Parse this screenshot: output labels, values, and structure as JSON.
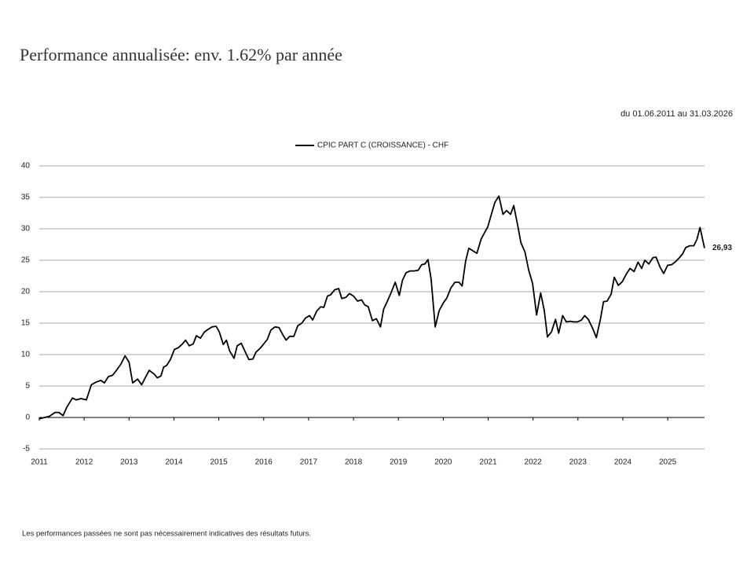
{
  "chart_data": {
    "type": "line",
    "title": "Performance annualisée: env. 1.62% par année",
    "subtitle": "du 01.06.2011 au 31.03.2026",
    "footnote": "Les performances passées ne sont pas nécessairement indicatives des résultats futurs.",
    "x": [
      2011.0,
      2011.12,
      2011.23,
      2011.35,
      2011.44,
      2011.53,
      2011.61,
      2011.74,
      2011.82,
      2011.93,
      2012.05,
      2012.16,
      2012.26,
      2012.37,
      2012.45,
      2012.54,
      2012.63,
      2012.72,
      2012.82,
      2012.91,
      2013.0,
      2013.08,
      2013.19,
      2013.28,
      2013.36,
      2013.45,
      2013.56,
      2013.63,
      2013.71,
      2013.77,
      2013.84,
      2013.92,
      2014.01,
      2014.1,
      2014.19,
      2014.26,
      2014.34,
      2014.43,
      2014.5,
      2014.59,
      2014.68,
      2014.76,
      2014.85,
      2014.94,
      2015.01,
      2015.1,
      2015.17,
      2015.24,
      2015.34,
      2015.41,
      2015.5,
      2015.59,
      2015.67,
      2015.76,
      2015.83,
      2015.92,
      2015.99,
      2016.08,
      2016.16,
      2016.25,
      2016.34,
      2016.43,
      2016.5,
      2016.58,
      2016.67,
      2016.76,
      2016.85,
      2016.93,
      2017.02,
      2017.09,
      2017.18,
      2017.27,
      2017.34,
      2017.42,
      2017.49,
      2017.58,
      2017.67,
      2017.74,
      2017.83,
      2017.91,
      2018.0,
      2018.09,
      2018.18,
      2018.25,
      2018.33,
      2018.42,
      2018.51,
      2018.6,
      2018.67,
      2018.75,
      2018.84,
      2018.93,
      2019.02,
      2019.09,
      2019.17,
      2019.26,
      2019.35,
      2019.44,
      2019.52,
      2019.59,
      2019.66,
      2019.73,
      2019.82,
      2019.91,
      2020.0,
      2020.08,
      2020.17,
      2020.26,
      2020.35,
      2020.42,
      2020.5,
      2020.57,
      2020.66,
      2020.75,
      2020.84,
      2020.92,
      2020.99,
      2021.08,
      2021.15,
      2021.24,
      2021.33,
      2021.41,
      2021.5,
      2021.57,
      2021.66,
      2021.73,
      2021.82,
      2021.9,
      2021.99,
      2022.08,
      2022.17,
      2022.25,
      2022.32,
      2022.41,
      2022.5,
      2022.57,
      2022.66,
      2022.74,
      2022.83,
      2022.9,
      2022.99,
      2023.08,
      2023.15,
      2023.23,
      2023.32,
      2023.41,
      2023.5,
      2023.57,
      2023.65,
      2023.74,
      2023.81,
      2023.9,
      2023.99,
      2024.07,
      2024.16,
      2024.25,
      2024.34,
      2024.42,
      2024.49,
      2024.58,
      2024.67,
      2024.74,
      2024.83,
      2024.91,
      2025.0,
      2025.09,
      2025.18,
      2025.26,
      2025.33,
      2025.4,
      2025.49,
      2025.58,
      2025.65,
      2025.72,
      2025.82
    ],
    "series": [
      {
        "name": "CPIC PART C (CROISSANCE) - CHF",
        "color": "#000000",
        "values": [
          -0.2,
          0,
          0.2,
          0.8,
          0.8,
          0.3,
          1.6,
          3.1,
          2.8,
          3.0,
          2.8,
          5.2,
          5.6,
          5.9,
          5.5,
          6.5,
          6.7,
          7.5,
          8.5,
          9.8,
          8.8,
          5.5,
          6.1,
          5.2,
          6.3,
          7.5,
          6.9,
          6.3,
          6.6,
          8.0,
          8.3,
          9.2,
          10.8,
          11.1,
          11.7,
          12.3,
          11.4,
          11.7,
          13.0,
          12.6,
          13.6,
          14.0,
          14.4,
          14.5,
          13.6,
          11.6,
          12.3,
          10.6,
          9.4,
          11.4,
          11.8,
          10.4,
          9.2,
          9.3,
          10.4,
          11.0,
          11.6,
          12.4,
          13.9,
          14.4,
          14.3,
          13.1,
          12.3,
          12.9,
          12.9,
          14.6,
          15.0,
          15.8,
          16.2,
          15.5,
          16.9,
          17.6,
          17.5,
          19.3,
          19.5,
          20.3,
          20.5,
          18.9,
          19.1,
          19.7,
          19.3,
          18.5,
          18.7,
          17.9,
          17.6,
          15.4,
          15.7,
          14.4,
          17.2,
          18.4,
          19.9,
          21.5,
          19.4,
          21.8,
          23.0,
          23.3,
          23.3,
          23.4,
          24.3,
          24.4,
          25.1,
          22.0,
          14.4,
          17.0,
          18.2,
          19.0,
          20.6,
          21.5,
          21.5,
          20.9,
          24.9,
          26.9,
          26.5,
          26.1,
          28.3,
          29.4,
          30.3,
          32.5,
          34.2,
          35.2,
          32.3,
          32.9,
          32.3,
          33.7,
          30.5,
          27.8,
          26.3,
          23.5,
          21.3,
          16.3,
          19.8,
          17.0,
          12.8,
          13.6,
          15.6,
          13.4,
          16.2,
          15.2,
          15.3,
          15.2,
          15.2,
          15.5,
          16.2,
          15.6,
          14.3,
          12.7,
          15.6,
          18.4,
          18.5,
          19.6,
          22.3,
          21.0,
          21.6,
          22.7,
          23.7,
          23.2,
          24.7,
          23.7,
          25.0,
          24.4,
          25.4,
          25.5,
          23.9,
          22.9,
          24.2,
          24.3,
          24.8,
          25.4,
          26.0,
          27.0,
          27.3,
          27.3,
          28.3,
          30.2,
          26.93
        ],
        "last_label": "26,93"
      }
    ],
    "xlim": [
      2011,
      2025.82
    ],
    "xticks": [
      2011,
      2012,
      2013,
      2014,
      2015,
      2016,
      2017,
      2018,
      2019,
      2020,
      2021,
      2022,
      2023,
      2024,
      2025
    ],
    "ylim": [
      -5,
      40
    ],
    "yticks": [
      -5,
      0,
      5,
      10,
      15,
      20,
      25,
      30,
      35,
      40
    ],
    "grid": true
  }
}
